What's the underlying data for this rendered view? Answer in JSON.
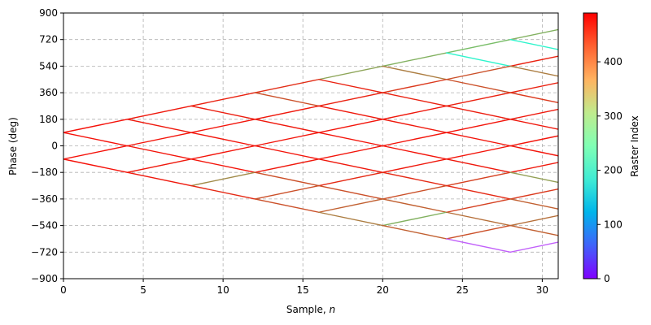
{
  "chart_data": {
    "type": "line",
    "xlabel": "Sample, ",
    "xlabel_italic": "n",
    "ylabel": "Phase (deg)",
    "xlim": [
      0,
      31
    ],
    "ylim": [
      -900,
      900
    ],
    "xticks": [
      0,
      5,
      10,
      15,
      20,
      25,
      30
    ],
    "yticks": [
      -900,
      -720,
      -540,
      -360,
      -180,
      0,
      180,
      360,
      540,
      720,
      900
    ],
    "grid": true,
    "grid_style": "dashed",
    "colorbar": {
      "label": "Raster Index",
      "min": 0,
      "max": 490,
      "ticks": [
        0,
        100,
        200,
        300,
        400
      ],
      "colormap": "rainbow"
    },
    "segments": [
      {
        "x": [
          0,
          4
        ],
        "y": [
          90,
          180
        ],
        "value": 480
      },
      {
        "x": [
          0,
          4
        ],
        "y": [
          90,
          0
        ],
        "value": 480
      },
      {
        "x": [
          0,
          4
        ],
        "y": [
          -90,
          0
        ],
        "value": 480
      },
      {
        "x": [
          0,
          4
        ],
        "y": [
          -90,
          -180
        ],
        "value": 480
      },
      {
        "x": [
          4,
          8
        ],
        "y": [
          180,
          270
        ],
        "value": 475
      },
      {
        "x": [
          4,
          8
        ],
        "y": [
          180,
          90
        ],
        "value": 475
      },
      {
        "x": [
          4,
          8
        ],
        "y": [
          0,
          90
        ],
        "value": 478
      },
      {
        "x": [
          4,
          8
        ],
        "y": [
          0,
          -90
        ],
        "value": 478
      },
      {
        "x": [
          4,
          8
        ],
        "y": [
          -180,
          -90
        ],
        "value": 475
      },
      {
        "x": [
          4,
          8
        ],
        "y": [
          -180,
          -270
        ],
        "value": 475
      },
      {
        "x": [
          8,
          12
        ],
        "y": [
          270,
          360
        ],
        "value": 470
      },
      {
        "x": [
          8,
          12
        ],
        "y": [
          270,
          180
        ],
        "value": 472
      },
      {
        "x": [
          8,
          12
        ],
        "y": [
          90,
          180
        ],
        "value": 478
      },
      {
        "x": [
          8,
          12
        ],
        "y": [
          90,
          0
        ],
        "value": 478
      },
      {
        "x": [
          8,
          12
        ],
        "y": [
          -90,
          0
        ],
        "value": 478
      },
      {
        "x": [
          8,
          12
        ],
        "y": [
          -90,
          -180
        ],
        "value": 478
      },
      {
        "x": [
          8,
          12
        ],
        "y": [
          -270,
          -180
        ],
        "value": 400
      },
      {
        "x": [
          8,
          12
        ],
        "y": [
          -270,
          -360
        ],
        "value": 465
      },
      {
        "x": [
          12,
          16
        ],
        "y": [
          360,
          450
        ],
        "value": 462
      },
      {
        "x": [
          12,
          16
        ],
        "y": [
          360,
          270
        ],
        "value": 440
      },
      {
        "x": [
          12,
          16
        ],
        "y": [
          180,
          270
        ],
        "value": 475
      },
      {
        "x": [
          12,
          16
        ],
        "y": [
          180,
          90
        ],
        "value": 475
      },
      {
        "x": [
          12,
          16
        ],
        "y": [
          0,
          90
        ],
        "value": 478
      },
      {
        "x": [
          12,
          16
        ],
        "y": [
          0,
          -90
        ],
        "value": 478
      },
      {
        "x": [
          12,
          16
        ],
        "y": [
          -180,
          -90
        ],
        "value": 475
      },
      {
        "x": [
          12,
          16
        ],
        "y": [
          -180,
          -270
        ],
        "value": 440
      },
      {
        "x": [
          12,
          16
        ],
        "y": [
          -360,
          -270
        ],
        "value": 440
      },
      {
        "x": [
          12,
          16
        ],
        "y": [
          -360,
          -450
        ],
        "value": 440
      },
      {
        "x": [
          16,
          20
        ],
        "y": [
          450,
          540
        ],
        "value": 380
      },
      {
        "x": [
          16,
          20
        ],
        "y": [
          450,
          360
        ],
        "value": 470
      },
      {
        "x": [
          16,
          20
        ],
        "y": [
          270,
          360
        ],
        "value": 470
      },
      {
        "x": [
          16,
          20
        ],
        "y": [
          270,
          180
        ],
        "value": 475
      },
      {
        "x": [
          16,
          20
        ],
        "y": [
          90,
          180
        ],
        "value": 478
      },
      {
        "x": [
          16,
          20
        ],
        "y": [
          90,
          0
        ],
        "value": 478
      },
      {
        "x": [
          16,
          20
        ],
        "y": [
          -90,
          0
        ],
        "value": 478
      },
      {
        "x": [
          16,
          20
        ],
        "y": [
          -90,
          -180
        ],
        "value": 475
      },
      {
        "x": [
          16,
          20
        ],
        "y": [
          -270,
          -180
        ],
        "value": 465
      },
      {
        "x": [
          16,
          20
        ],
        "y": [
          -270,
          -360
        ],
        "value": 440
      },
      {
        "x": [
          16,
          20
        ],
        "y": [
          -450,
          -360
        ],
        "value": 430
      },
      {
        "x": [
          16,
          20
        ],
        "y": [
          -450,
          -540
        ],
        "value": 410
      },
      {
        "x": [
          20,
          24
        ],
        "y": [
          540,
          630
        ],
        "value": 370
      },
      {
        "x": [
          20,
          24
        ],
        "y": [
          540,
          450
        ],
        "value": 410
      },
      {
        "x": [
          20,
          24
        ],
        "y": [
          360,
          450
        ],
        "value": 455
      },
      {
        "x": [
          20,
          24
        ],
        "y": [
          360,
          270
        ],
        "value": 470
      },
      {
        "x": [
          20,
          24
        ],
        "y": [
          180,
          270
        ],
        "value": 475
      },
      {
        "x": [
          20,
          24
        ],
        "y": [
          180,
          90
        ],
        "value": 475
      },
      {
        "x": [
          20,
          24
        ],
        "y": [
          0,
          90
        ],
        "value": 478
      },
      {
        "x": [
          20,
          24
        ],
        "y": [
          0,
          -90
        ],
        "value": 478
      },
      {
        "x": [
          20,
          24
        ],
        "y": [
          -180,
          -90
        ],
        "value": 475
      },
      {
        "x": [
          20,
          24
        ],
        "y": [
          -180,
          -270
        ],
        "value": 465
      },
      {
        "x": [
          20,
          24
        ],
        "y": [
          -360,
          -270
        ],
        "value": 440
      },
      {
        "x": [
          20,
          24
        ],
        "y": [
          -360,
          -450
        ],
        "value": 430
      },
      {
        "x": [
          20,
          24
        ],
        "y": [
          -540,
          -450
        ],
        "value": 370
      },
      {
        "x": [
          20,
          24
        ],
        "y": [
          -540,
          -630
        ],
        "value": 430
      },
      {
        "x": [
          24,
          28
        ],
        "y": [
          630,
          720
        ],
        "value": 360
      },
      {
        "x": [
          24,
          28
        ],
        "y": [
          630,
          540
        ],
        "value": 200
      },
      {
        "x": [
          24,
          28
        ],
        "y": [
          450,
          540
        ],
        "value": 440
      },
      {
        "x": [
          24,
          28
        ],
        "y": [
          450,
          360
        ],
        "value": 440
      },
      {
        "x": [
          24,
          28
        ],
        "y": [
          270,
          360
        ],
        "value": 470
      },
      {
        "x": [
          24,
          28
        ],
        "y": [
          270,
          180
        ],
        "value": 472
      },
      {
        "x": [
          24,
          28
        ],
        "y": [
          90,
          180
        ],
        "value": 478
      },
      {
        "x": [
          24,
          28
        ],
        "y": [
          90,
          0
        ],
        "value": 478
      },
      {
        "x": [
          24,
          28
        ],
        "y": [
          -90,
          0
        ],
        "value": 478
      },
      {
        "x": [
          24,
          28
        ],
        "y": [
          -90,
          -180
        ],
        "value": 475
      },
      {
        "x": [
          24,
          28
        ],
        "y": [
          -270,
          -180
        ],
        "value": 450
      },
      {
        "x": [
          24,
          28
        ],
        "y": [
          -270,
          -360
        ],
        "value": 465
      },
      {
        "x": [
          24,
          28
        ],
        "y": [
          -450,
          -360
        ],
        "value": 450
      },
      {
        "x": [
          24,
          28
        ],
        "y": [
          -450,
          -540
        ],
        "value": 420
      },
      {
        "x": [
          24,
          28
        ],
        "y": [
          -630,
          -540
        ],
        "value": 440
      },
      {
        "x": [
          24,
          28
        ],
        "y": [
          -630,
          -720
        ],
        "value": 60
      },
      {
        "x": [
          28,
          31
        ],
        "y": [
          720,
          787.5
        ],
        "value": 370
      },
      {
        "x": [
          28,
          31
        ],
        "y": [
          720,
          652.5
        ],
        "value": 200
      },
      {
        "x": [
          28,
          31
        ],
        "y": [
          540,
          607.5
        ],
        "value": 470
      },
      {
        "x": [
          28,
          31
        ],
        "y": [
          540,
          472.5
        ],
        "value": 410
      },
      {
        "x": [
          28,
          31
        ],
        "y": [
          360,
          427.5
        ],
        "value": 470
      },
      {
        "x": [
          28,
          31
        ],
        "y": [
          360,
          292.5
        ],
        "value": 455
      },
      {
        "x": [
          28,
          31
        ],
        "y": [
          180,
          247.5
        ],
        "value": 475
      },
      {
        "x": [
          28,
          31
        ],
        "y": [
          180,
          112.5
        ],
        "value": 475
      },
      {
        "x": [
          28,
          31
        ],
        "y": [
          0,
          67.5
        ],
        "value": 478
      },
      {
        "x": [
          28,
          31
        ],
        "y": [
          0,
          -67.5
        ],
        "value": 478
      },
      {
        "x": [
          28,
          31
        ],
        "y": [
          -180,
          -112.5
        ],
        "value": 475
      },
      {
        "x": [
          28,
          31
        ],
        "y": [
          -180,
          -247.5
        ],
        "value": 385
      },
      {
        "x": [
          28,
          31
        ],
        "y": [
          -360,
          -292.5
        ],
        "value": 455
      },
      {
        "x": [
          28,
          31
        ],
        "y": [
          -360,
          -427.5
        ],
        "value": 430
      },
      {
        "x": [
          28,
          31
        ],
        "y": [
          -540,
          -472.5
        ],
        "value": 420
      },
      {
        "x": [
          28,
          31
        ],
        "y": [
          -540,
          -607.5
        ],
        "value": 430
      },
      {
        "x": [
          28,
          31
        ],
        "y": [
          -720,
          -652.5
        ],
        "value": 60
      }
    ]
  }
}
